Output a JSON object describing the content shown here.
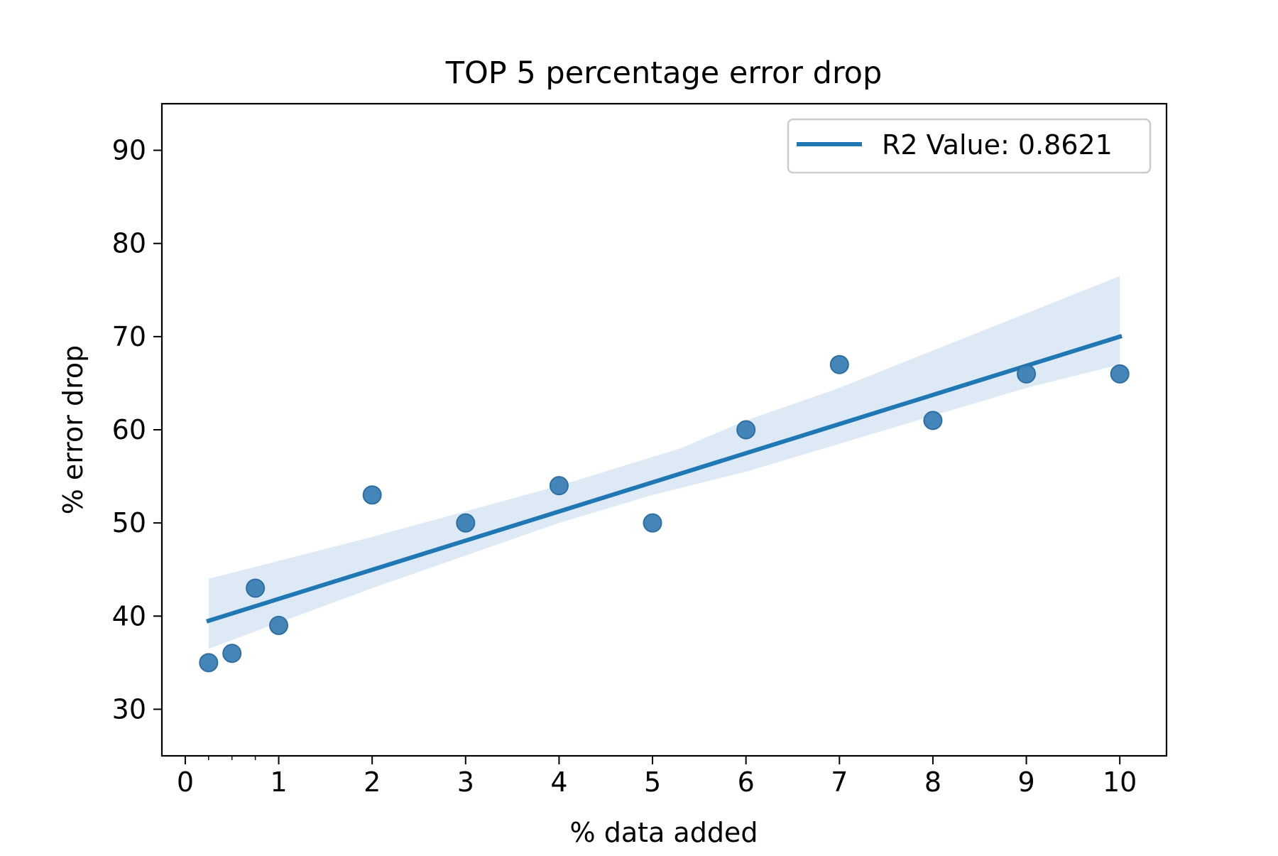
{
  "chart_data": {
    "type": "scatter",
    "title": "TOP 5 percentage error drop",
    "xlabel": "% data added",
    "ylabel": "% error drop",
    "xlim": [
      -0.25,
      10.5
    ],
    "ylim": [
      25,
      95
    ],
    "xticks": [
      0,
      1,
      2,
      3,
      4,
      5,
      6,
      7,
      8,
      9,
      10
    ],
    "xtick_labels": [
      "0",
      "1",
      "2",
      "3",
      "4",
      "5",
      "6",
      "7",
      "8",
      "9",
      "10"
    ],
    "x_minor_ticks": [
      0.25,
      0.5,
      0.75
    ],
    "yticks": [
      30,
      40,
      50,
      60,
      70,
      80,
      90
    ],
    "ytick_labels": [
      "30",
      "40",
      "50",
      "60",
      "70",
      "80",
      "90"
    ],
    "grid": false,
    "legend_position": "top-right",
    "colors": {
      "points": "#3a7fb5",
      "line": "#1f77b4",
      "band": "#dde9f4",
      "axes": "#000000"
    },
    "points": [
      {
        "x": 0.25,
        "y": 35
      },
      {
        "x": 0.5,
        "y": 36
      },
      {
        "x": 0.75,
        "y": 43
      },
      {
        "x": 1,
        "y": 39
      },
      {
        "x": 2,
        "y": 53
      },
      {
        "x": 3,
        "y": 50
      },
      {
        "x": 4,
        "y": 54
      },
      {
        "x": 5,
        "y": 50
      },
      {
        "x": 6,
        "y": 60
      },
      {
        "x": 7,
        "y": 67
      },
      {
        "x": 8,
        "y": 61
      },
      {
        "x": 9,
        "y": 66
      },
      {
        "x": 10,
        "y": 66
      }
    ],
    "regression": {
      "label": "R2 Value: 0.8621",
      "start": {
        "x": 0.25,
        "y": 39.5
      },
      "end": {
        "x": 10,
        "y": 70
      }
    },
    "confidence_band": {
      "upper": [
        {
          "x": 0.25,
          "y": 44
        },
        {
          "x": 2,
          "y": 48.5
        },
        {
          "x": 4,
          "y": 54
        },
        {
          "x": 5.3,
          "y": 58
        },
        {
          "x": 6,
          "y": 61
        },
        {
          "x": 7,
          "y": 64.5
        },
        {
          "x": 8,
          "y": 68.5
        },
        {
          "x": 9,
          "y": 72.5
        },
        {
          "x": 10,
          "y": 76.5
        }
      ],
      "lower": [
        {
          "x": 0.25,
          "y": 36.5
        },
        {
          "x": 2,
          "y": 43
        },
        {
          "x": 4,
          "y": 50
        },
        {
          "x": 5,
          "y": 53
        },
        {
          "x": 6,
          "y": 55.5
        },
        {
          "x": 7,
          "y": 58.5
        },
        {
          "x": 8,
          "y": 61.5
        },
        {
          "x": 9,
          "y": 64.5
        },
        {
          "x": 10,
          "y": 67
        }
      ]
    }
  }
}
